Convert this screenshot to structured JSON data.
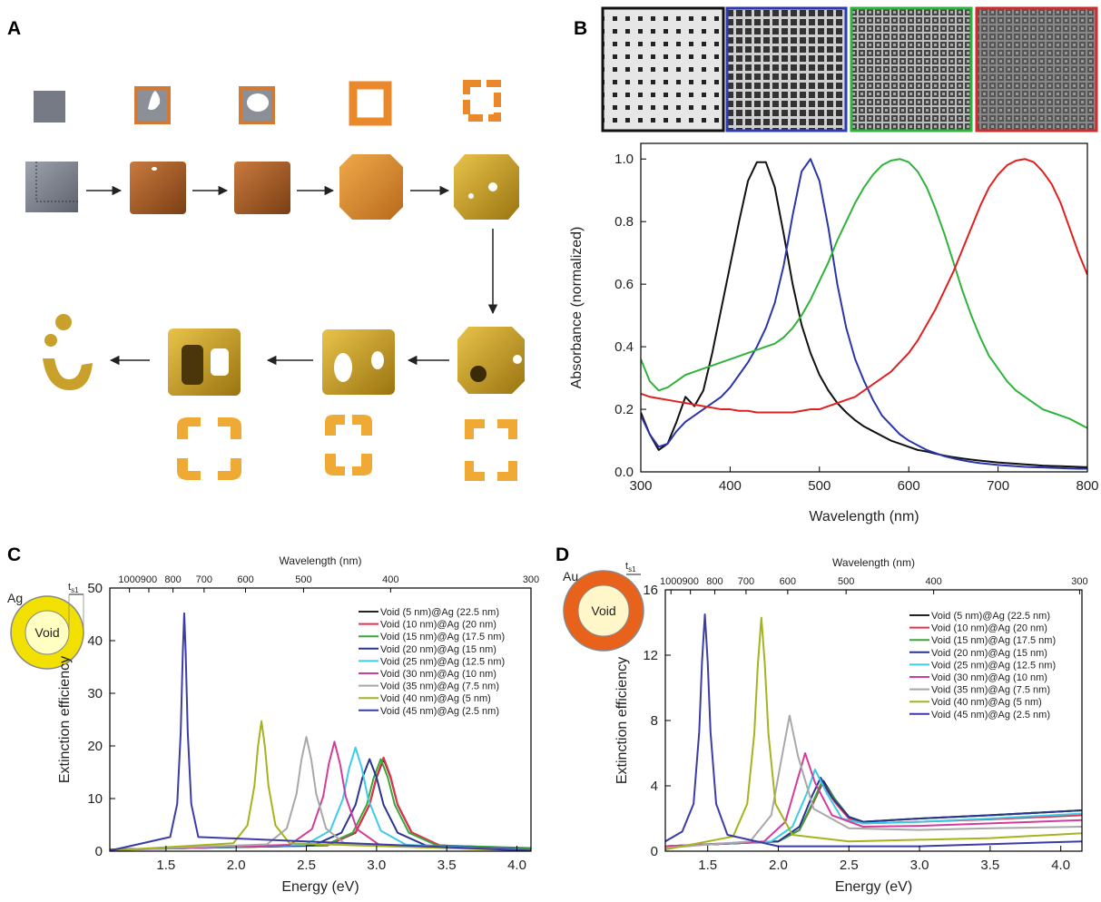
{
  "figure": {
    "panel_a_label": "A"
  },
  "chart_data": [
    {
      "type": "line",
      "panel": "B",
      "xlabel": "Wavelength (nm)",
      "ylabel": "Absorbance (normalized)",
      "xlim": [
        300,
        800
      ],
      "ylim": [
        0,
        1.05
      ],
      "xticks": [
        300,
        400,
        500,
        600,
        700,
        800
      ],
      "yticks": [
        {
          "value": 0,
          "label": "0.0"
        },
        0.2,
        0.4,
        0.6,
        0.8,
        {
          "value": 1,
          "label": "1.0"
        }
      ],
      "x": [
        300,
        310,
        320,
        330,
        340,
        350,
        360,
        370,
        380,
        390,
        400,
        410,
        420,
        430,
        440,
        450,
        460,
        470,
        480,
        490,
        500,
        510,
        520,
        530,
        540,
        550,
        560,
        570,
        580,
        590,
        600,
        610,
        620,
        630,
        640,
        650,
        660,
        670,
        680,
        690,
        700,
        710,
        720,
        730,
        740,
        750,
        760,
        770,
        780,
        790,
        800
      ],
      "series": [
        {
          "color": "#111111",
          "values": [
            0.19,
            0.12,
            0.07,
            0.09,
            0.16,
            0.24,
            0.21,
            0.26,
            0.38,
            0.52,
            0.66,
            0.8,
            0.93,
            0.99,
            0.99,
            0.91,
            0.76,
            0.6,
            0.47,
            0.38,
            0.31,
            0.26,
            0.22,
            0.19,
            0.165,
            0.145,
            0.13,
            0.115,
            0.1,
            0.09,
            0.08,
            0.07,
            0.065,
            0.058,
            0.052,
            0.047,
            0.043,
            0.039,
            0.036,
            0.033,
            0.03,
            0.028,
            0.026,
            0.024,
            0.022,
            0.02,
            0.019,
            0.018,
            0.017,
            0.016,
            0.015
          ]
        },
        {
          "color": "#2b35a8",
          "values": [
            0.18,
            0.12,
            0.08,
            0.09,
            0.13,
            0.16,
            0.18,
            0.2,
            0.22,
            0.24,
            0.27,
            0.31,
            0.35,
            0.4,
            0.46,
            0.54,
            0.66,
            0.82,
            0.96,
            1.0,
            0.93,
            0.78,
            0.6,
            0.46,
            0.36,
            0.29,
            0.23,
            0.18,
            0.15,
            0.12,
            0.1,
            0.085,
            0.07,
            0.06,
            0.05,
            0.043,
            0.037,
            0.032,
            0.028,
            0.025,
            0.022,
            0.02,
            0.018,
            0.016,
            0.015,
            0.014,
            0.013,
            0.012,
            0.011,
            0.01,
            0.01
          ]
        },
        {
          "color": "#2fb33a",
          "values": [
            0.36,
            0.29,
            0.26,
            0.27,
            0.29,
            0.31,
            0.32,
            0.33,
            0.34,
            0.35,
            0.36,
            0.37,
            0.38,
            0.39,
            0.4,
            0.41,
            0.43,
            0.46,
            0.5,
            0.55,
            0.61,
            0.67,
            0.74,
            0.8,
            0.86,
            0.91,
            0.95,
            0.98,
            0.995,
            1.0,
            0.99,
            0.96,
            0.91,
            0.84,
            0.76,
            0.67,
            0.58,
            0.5,
            0.43,
            0.37,
            0.33,
            0.29,
            0.26,
            0.24,
            0.22,
            0.2,
            0.19,
            0.18,
            0.17,
            0.155,
            0.14
          ]
        },
        {
          "color": "#e02020",
          "values": [
            0.25,
            0.24,
            0.235,
            0.23,
            0.225,
            0.22,
            0.215,
            0.21,
            0.205,
            0.2,
            0.2,
            0.195,
            0.195,
            0.19,
            0.19,
            0.19,
            0.19,
            0.19,
            0.195,
            0.2,
            0.2,
            0.21,
            0.22,
            0.23,
            0.24,
            0.26,
            0.28,
            0.3,
            0.32,
            0.35,
            0.38,
            0.42,
            0.47,
            0.52,
            0.58,
            0.64,
            0.71,
            0.78,
            0.85,
            0.91,
            0.95,
            0.98,
            0.995,
            1.0,
            0.99,
            0.96,
            0.92,
            0.86,
            0.78,
            0.7,
            0.63
          ]
        }
      ]
    },
    {
      "type": "line",
      "panel": "C",
      "xlabel": "Energy (eV)",
      "ylabel": "Extinction efficiency",
      "x2label": "Wavelength (nm)",
      "inset": {
        "shell_label": "Ag",
        "core_label": "Void",
        "thickness_label": "t",
        "thickness_subscript": "s1"
      },
      "xlim": [
        1.1,
        4.1
      ],
      "ylim": [
        0,
        50
      ],
      "xticks": [
        1.5,
        {
          "value": 2,
          "label": "2.0"
        },
        2.5,
        {
          "value": 3,
          "label": "3.0"
        },
        3.5,
        {
          "value": 4,
          "label": "4.0"
        }
      ],
      "yticks": [
        0,
        10,
        20,
        30,
        40,
        50
      ],
      "x2ticks": [
        1000,
        900,
        800,
        700,
        600,
        500,
        400,
        300
      ],
      "series": [
        {
          "name": "Void (5 nm)@Ag (22.5 nm)",
          "color": "#222222",
          "x": [
            1.1,
            2.65,
            2.85,
            2.95,
            3.0,
            3.05,
            3.1,
            3.15,
            3.25,
            3.45,
            4.1
          ],
          "values": [
            0.3,
            1.1,
            3.5,
            8.8,
            14,
            17.5,
            14,
            8.8,
            3.5,
            1.1,
            0.4
          ]
        },
        {
          "name": "Void (10 nm)@Ag (20 nm)",
          "color": "#e8304a",
          "x": [
            1.1,
            2.65,
            2.85,
            2.95,
            3.0,
            3.05,
            3.1,
            3.15,
            3.25,
            3.45,
            4.1
          ],
          "values": [
            0.3,
            1.1,
            3.6,
            8.9,
            14.2,
            17.8,
            14.2,
            8.9,
            3.6,
            1.1,
            0.5
          ]
        },
        {
          "name": "Void (15 nm)@Ag (17.5 nm)",
          "color": "#3aa63a",
          "x": [
            1.1,
            2.63,
            2.83,
            2.93,
            2.98,
            3.03,
            3.08,
            3.13,
            3.23,
            3.43,
            4.1
          ],
          "values": [
            0.3,
            1.1,
            3.5,
            8.8,
            14,
            17.5,
            14,
            8.8,
            3.5,
            1.1,
            0.6
          ]
        },
        {
          "name": "Void (20 nm)@Ag (15 nm)",
          "color": "#2a3590",
          "x": [
            1.1,
            2.55,
            2.75,
            2.85,
            2.9,
            2.95,
            3.0,
            3.05,
            3.15,
            3.35,
            4.1
          ],
          "values": [
            0.3,
            1.1,
            3.5,
            8.8,
            14,
            17.5,
            14,
            8.8,
            3.5,
            1.1,
            0.3
          ]
        },
        {
          "name": "Void (25 nm)@Ag (12.5 nm)",
          "color": "#3ccbe8",
          "x": [
            1.1,
            2.49,
            2.67,
            2.76,
            2.805,
            2.85,
            2.895,
            2.94,
            3.03,
            3.21,
            4.1
          ],
          "values": [
            0.2,
            1.2,
            3.9,
            9.9,
            15.8,
            19.7,
            15.8,
            9.9,
            3.9,
            1.2,
            0.2
          ]
        },
        {
          "name": "Void (30 nm)@Ag (10 nm)",
          "color": "#d23c9a",
          "x": [
            1.1,
            2.38,
            2.54,
            2.62,
            2.66,
            2.7,
            2.74,
            2.78,
            2.86,
            3.02,
            4.1
          ],
          "values": [
            0.2,
            1.2,
            4.2,
            10.4,
            16.6,
            20.8,
            16.6,
            10.4,
            4.2,
            1.2,
            0.2
          ]
        },
        {
          "name": "Void (35 nm)@Ag (7.5 nm)",
          "color": "#a8a8a8",
          "x": [
            1.1,
            2.22,
            2.36,
            2.43,
            2.465,
            2.5,
            2.535,
            2.57,
            2.64,
            2.78,
            4.1
          ],
          "values": [
            0.2,
            1.3,
            4.3,
            10.9,
            17.4,
            21.7,
            17.4,
            10.9,
            4.3,
            1.3,
            0.2
          ]
        },
        {
          "name": "Void (40 nm)@Ag (5 nm)",
          "color": "#a6b31e",
          "x": [
            1.1,
            1.98,
            2.08,
            2.13,
            2.155,
            2.18,
            2.205,
            2.23,
            2.28,
            2.38,
            4.1
          ],
          "values": [
            0.1,
            1.5,
            4.9,
            12.4,
            19.8,
            24.7,
            19.8,
            12.4,
            4.9,
            1.5,
            0.1
          ]
        },
        {
          "name": "Void (45 nm)@Ag (2.5 nm)",
          "color": "#3b3ca6",
          "x": [
            1.1,
            1.53,
            1.58,
            1.605,
            1.62,
            1.63,
            1.64,
            1.655,
            1.68,
            1.73,
            4.1
          ],
          "values": [
            0.1,
            2.7,
            9,
            22.6,
            38,
            45.2,
            38,
            22.6,
            9,
            2.7,
            0.1
          ]
        }
      ]
    },
    {
      "type": "line",
      "panel": "D",
      "xlabel": "Energy (eV)",
      "ylabel": "Extinction efficiency",
      "x2label": "Wavelength (nm)",
      "inset": {
        "shell_label": "Au",
        "core_label": "Void",
        "thickness_label": "t",
        "thickness_subscript": "s1"
      },
      "xlim": [
        1.2,
        4.15
      ],
      "ylim": [
        0,
        16
      ],
      "xticks": [
        1.5,
        {
          "value": 2,
          "label": "2.0"
        },
        2.5,
        {
          "value": 3,
          "label": "3.0"
        },
        3.5,
        {
          "value": 4,
          "label": "4.0"
        }
      ],
      "yticks": [
        0,
        4,
        8,
        12,
        16
      ],
      "x2ticks": [
        1000,
        900,
        800,
        700,
        600,
        500,
        400,
        300
      ],
      "series": [
        {
          "name": "Void (5 nm)@Ag (22.5 nm)",
          "color": "#222222",
          "x": [
            1.2,
            2.0,
            2.15,
            2.25,
            2.32,
            2.4,
            2.5,
            2.6,
            3.0,
            3.5,
            4.15
          ],
          "values": [
            0.3,
            0.6,
            1.3,
            3.0,
            4.3,
            3.2,
            2.1,
            1.8,
            2.0,
            2.2,
            2.5
          ]
        },
        {
          "name": "Void (10 nm)@Ag (20 nm)",
          "color": "#e8304a",
          "x": [
            1.2,
            2.0,
            2.15,
            2.25,
            2.31,
            2.4,
            2.5,
            2.6,
            3.0,
            3.5,
            4.15
          ],
          "values": [
            0.3,
            0.6,
            1.3,
            3.0,
            4.2,
            3.0,
            2.0,
            1.7,
            1.8,
            1.95,
            2.2
          ]
        },
        {
          "name": "Void (15 nm)@Ag (17.5 nm)",
          "color": "#3aa63a",
          "x": [
            1.2,
            2.0,
            2.15,
            2.25,
            2.31,
            2.4,
            2.5,
            2.6,
            3.0,
            3.5,
            4.15
          ],
          "values": [
            0.3,
            0.6,
            1.3,
            3.1,
            4.3,
            3.2,
            2.1,
            1.8,
            2.0,
            2.2,
            2.5
          ]
        },
        {
          "name": "Void (20 nm)@Ag (15 nm)",
          "color": "#2a3590",
          "x": [
            1.2,
            2.0,
            2.15,
            2.24,
            2.3,
            2.38,
            2.5,
            2.6,
            3.0,
            3.5,
            4.15
          ],
          "values": [
            0.3,
            0.6,
            1.5,
            3.4,
            4.5,
            3.3,
            2.1,
            1.8,
            2.0,
            2.2,
            2.5
          ]
        },
        {
          "name": "Void (25 nm)@Ag (12.5 nm)",
          "color": "#3ccbe8",
          "x": [
            1.2,
            1.95,
            2.1,
            2.2,
            2.26,
            2.34,
            2.45,
            2.6,
            3.0,
            3.5,
            4.15
          ],
          "values": [
            0.3,
            0.6,
            1.5,
            3.5,
            5.0,
            3.6,
            2.0,
            1.7,
            1.8,
            2.0,
            2.3
          ]
        },
        {
          "name": "Void (30 nm)@Ag (10 nm)",
          "color": "#d23c9a",
          "x": [
            1.2,
            1.9,
            2.05,
            2.13,
            2.19,
            2.26,
            2.38,
            2.6,
            3.0,
            3.5,
            4.15
          ],
          "values": [
            0.3,
            0.6,
            1.8,
            4.2,
            6.0,
            4.2,
            2.2,
            1.5,
            1.55,
            1.7,
            1.9
          ]
        },
        {
          "name": "Void (35 nm)@Ag (7.5 nm)",
          "color": "#a8a8a8",
          "x": [
            1.2,
            1.8,
            1.95,
            2.03,
            2.08,
            2.14,
            2.25,
            2.5,
            3.0,
            3.5,
            4.15
          ],
          "values": [
            0.2,
            0.6,
            2.2,
            6.0,
            8.3,
            5.8,
            2.6,
            1.4,
            1.3,
            1.4,
            1.5
          ]
        },
        {
          "name": "Void (40 nm)@Ag (5 nm)",
          "color": "#a6b31e",
          "x": [
            1.2,
            1.68,
            1.78,
            1.83,
            1.855,
            1.88,
            1.905,
            1.93,
            1.98,
            2.1,
            2.5,
            3.5,
            4.15
          ],
          "values": [
            0.1,
            0.9,
            2.9,
            7.2,
            11.4,
            14.3,
            11.4,
            7.2,
            2.9,
            1.0,
            0.6,
            0.8,
            1.1
          ]
        },
        {
          "name": "Void (45 nm)@Ag (2.5 nm)",
          "color": "#3b3ca6",
          "x": [
            1.2,
            1.32,
            1.4,
            1.44,
            1.46,
            1.48,
            1.5,
            1.52,
            1.56,
            1.64,
            2.0,
            3.0,
            4.15
          ],
          "values": [
            0.6,
            1.2,
            2.9,
            7.3,
            11.6,
            14.5,
            11.6,
            7.3,
            2.9,
            1.0,
            0.3,
            0.3,
            0.6
          ]
        }
      ]
    }
  ]
}
